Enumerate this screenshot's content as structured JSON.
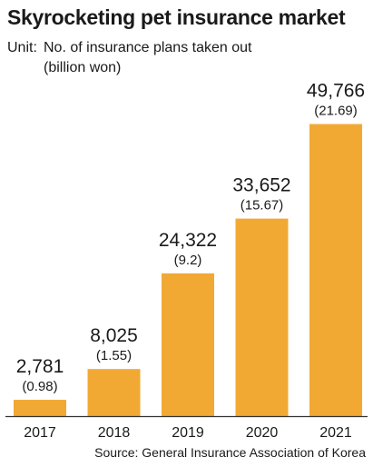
{
  "chart_data": {
    "type": "bar",
    "title": "Skyrocketing pet insurance market",
    "unit_prefix": "Unit:",
    "unit_line1": "No. of insurance plans taken out",
    "unit_line2": "(billion won)",
    "categories": [
      "2017",
      "2018",
      "2019",
      "2020",
      "2021"
    ],
    "series": [
      {
        "values": [
          2781,
          8025,
          24322,
          33652,
          49766
        ]
      }
    ],
    "value_labels": [
      "2,781",
      "8,025",
      "24,322",
      "33,652",
      "49,766"
    ],
    "secondary_values": [
      0.98,
      1.55,
      9.2,
      15.67,
      21.69
    ],
    "secondary_labels": [
      "(0.98)",
      "(1.55)",
      "(9.2)",
      "(15.67)",
      "(21.69)"
    ],
    "ylim": [
      0,
      50000
    ],
    "grid": false,
    "bar_color": "#F2A933",
    "source": "Source: General Insurance Association of Korea"
  }
}
